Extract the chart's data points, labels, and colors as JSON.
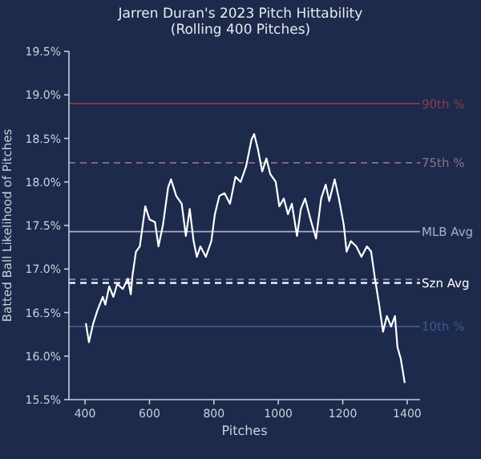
{
  "chart_data": {
    "type": "line",
    "title": "Jarren Duran's 2023 Pitch Hittability",
    "subtitle": "(Rolling 400 Pitches)",
    "xlabel": "Pitches",
    "ylabel": "Batted Ball Likelihood of Pitches",
    "xlim": [
      350,
      1440
    ],
    "xticks": [
      400,
      600,
      800,
      1000,
      1200,
      1400
    ],
    "ylim": [
      15.5,
      19.5
    ],
    "yticks": [
      {
        "value": 15.5,
        "label": "15.5%"
      },
      {
        "value": 16,
        "label": "16.0%"
      },
      {
        "value": 16.5,
        "label": "16.5%"
      },
      {
        "value": 17,
        "label": "17.0%"
      },
      {
        "value": 17.5,
        "label": "17.5%"
      },
      {
        "value": 18,
        "label": "18.0%"
      },
      {
        "value": 18.5,
        "label": "18.5%"
      },
      {
        "value": 19,
        "label": "19.0%"
      },
      {
        "value": 19.5,
        "label": "19.5%"
      }
    ],
    "grid": false,
    "marker": "none",
    "line_style": "solid",
    "ref_lines": [
      {
        "axis": "y",
        "value": 18.9,
        "label": "90th %",
        "color": "#8a3d52",
        "line_style": "solid"
      },
      {
        "axis": "y",
        "value": 18.22,
        "label": "75th %",
        "color": "#8c7088",
        "line_style": "dashed"
      },
      {
        "axis": "y",
        "value": 17.43,
        "label": "MLB Avg",
        "color": "#a9afc4",
        "line_style": "solid"
      },
      {
        "axis": "y",
        "value": 16.88,
        "color": "#7d86a3",
        "line_style": "dashed"
      },
      {
        "axis": "y",
        "value": 16.84,
        "label": "Szn Avg",
        "color": "#ffffff",
        "line_style": "dashed"
      },
      {
        "axis": "y",
        "value": 16.34,
        "label": "10th %",
        "color": "#3c5a93",
        "line_style": "solid"
      }
    ],
    "series": [
      {
        "color": "#ffffff",
        "x": [
          403,
          412,
          425,
          438,
          455,
          463,
          475,
          488,
          500,
          517,
          533,
          542,
          547,
          558,
          570,
          587,
          600,
          617,
          628,
          642,
          658,
          667,
          683,
          700,
          713,
          725,
          737,
          747,
          758,
          775,
          792,
          803,
          817,
          833,
          850,
          867,
          883,
          900,
          917,
          925,
          937,
          950,
          963,
          975,
          992,
          1003,
          1017,
          1030,
          1042,
          1058,
          1070,
          1083,
          1100,
          1117,
          1133,
          1147,
          1158,
          1175,
          1188,
          1203,
          1212,
          1225,
          1242,
          1258,
          1275,
          1288,
          1300,
          1313,
          1325,
          1337,
          1350,
          1362,
          1370,
          1380,
          1392
        ],
        "values": [
          16.37,
          16.16,
          16.37,
          16.52,
          16.68,
          16.59,
          16.8,
          16.68,
          16.83,
          16.77,
          16.89,
          16.71,
          16.92,
          17.2,
          17.26,
          17.72,
          17.57,
          17.54,
          17.26,
          17.51,
          17.94,
          18.03,
          17.84,
          17.75,
          17.38,
          17.69,
          17.32,
          17.14,
          17.26,
          17.14,
          17.32,
          17.63,
          17.84,
          17.87,
          17.75,
          18.06,
          18.0,
          18.18,
          18.49,
          18.55,
          18.37,
          18.12,
          18.27,
          18.09,
          18.0,
          17.72,
          17.81,
          17.63,
          17.75,
          17.38,
          17.69,
          17.81,
          17.57,
          17.35,
          17.81,
          17.97,
          17.78,
          18.03,
          17.81,
          17.51,
          17.2,
          17.32,
          17.26,
          17.14,
          17.26,
          17.2,
          16.89,
          16.59,
          16.28,
          16.46,
          16.34,
          16.46,
          16.1,
          15.97,
          15.7
        ]
      }
    ]
  }
}
